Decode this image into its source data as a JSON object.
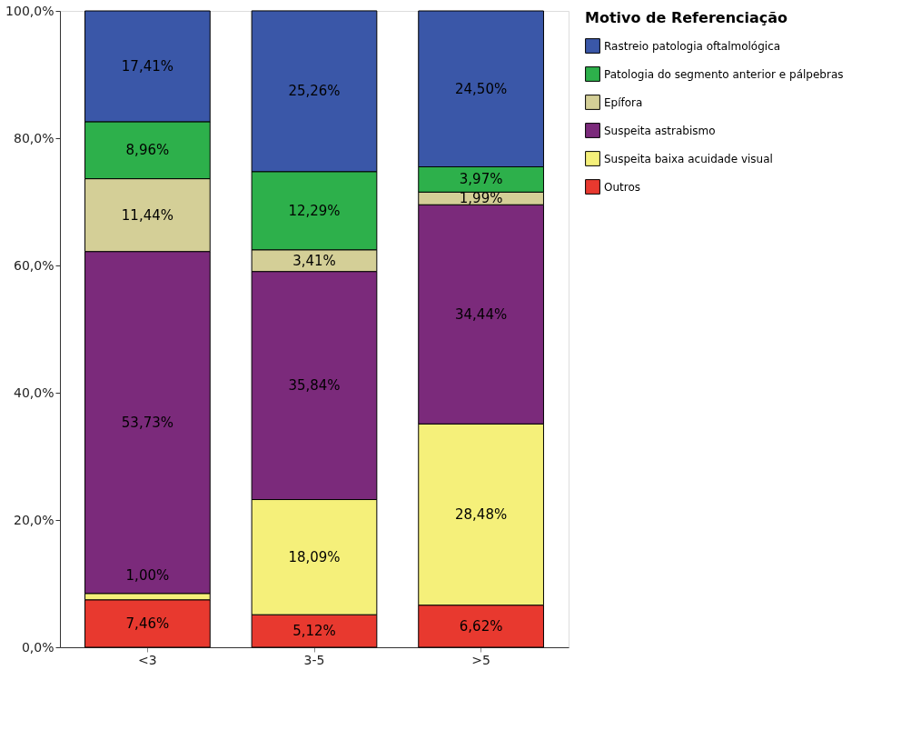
{
  "chart_data": {
    "type": "bar",
    "stacked": true,
    "legend_title": "Motivo de Referenciação",
    "legend": "top right",
    "categories": [
      "<3",
      "3-5",
      ">5"
    ],
    "ylim": [
      0,
      100
    ],
    "yticks": [
      {
        "value": 0,
        "label": "0,0%"
      },
      {
        "value": 20,
        "label": "20,0%"
      },
      {
        "value": 40,
        "label": "40,0%"
      },
      {
        "value": 60,
        "label": "60,0%"
      },
      {
        "value": 80,
        "label": "80,0%"
      },
      {
        "value": 100,
        "label": "100,0%"
      }
    ],
    "grid": false,
    "series": [
      {
        "name": "Outros",
        "color": "#e8392f",
        "values": [
          7.46,
          5.12,
          6.62
        ],
        "value_labels": [
          "7,46%",
          "5,12%",
          "6,62%"
        ]
      },
      {
        "name": "Suspeita baixa acuidade visual",
        "color": "#f5f07a",
        "values": [
          1.0,
          18.09,
          28.48
        ],
        "value_labels": [
          "1,00%",
          "18,09%",
          "28,48%"
        ]
      },
      {
        "name": "Suspeita astrabismo",
        "color": "#7b2a7b",
        "values": [
          53.73,
          35.84,
          34.44
        ],
        "value_labels": [
          "53,73%",
          "35,84%",
          "34,44%"
        ]
      },
      {
        "name": "Epífora",
        "color": "#d4cf97",
        "values": [
          11.44,
          3.41,
          1.99
        ],
        "value_labels": [
          "11,44%",
          "3,41%",
          "1,99%"
        ]
      },
      {
        "name": "Patologia do segmento anterior e pálpebras",
        "color": "#2db04b",
        "values": [
          8.96,
          12.29,
          3.97
        ],
        "value_labels": [
          "8,96%",
          "12,29%",
          "3,97%"
        ]
      },
      {
        "name": "Rastreio patologia oftalmológica",
        "color": "#3a57a8",
        "values": [
          17.41,
          25.26,
          24.5
        ],
        "value_labels": [
          "17,41%",
          "25,26%",
          "24,50%"
        ]
      }
    ]
  }
}
